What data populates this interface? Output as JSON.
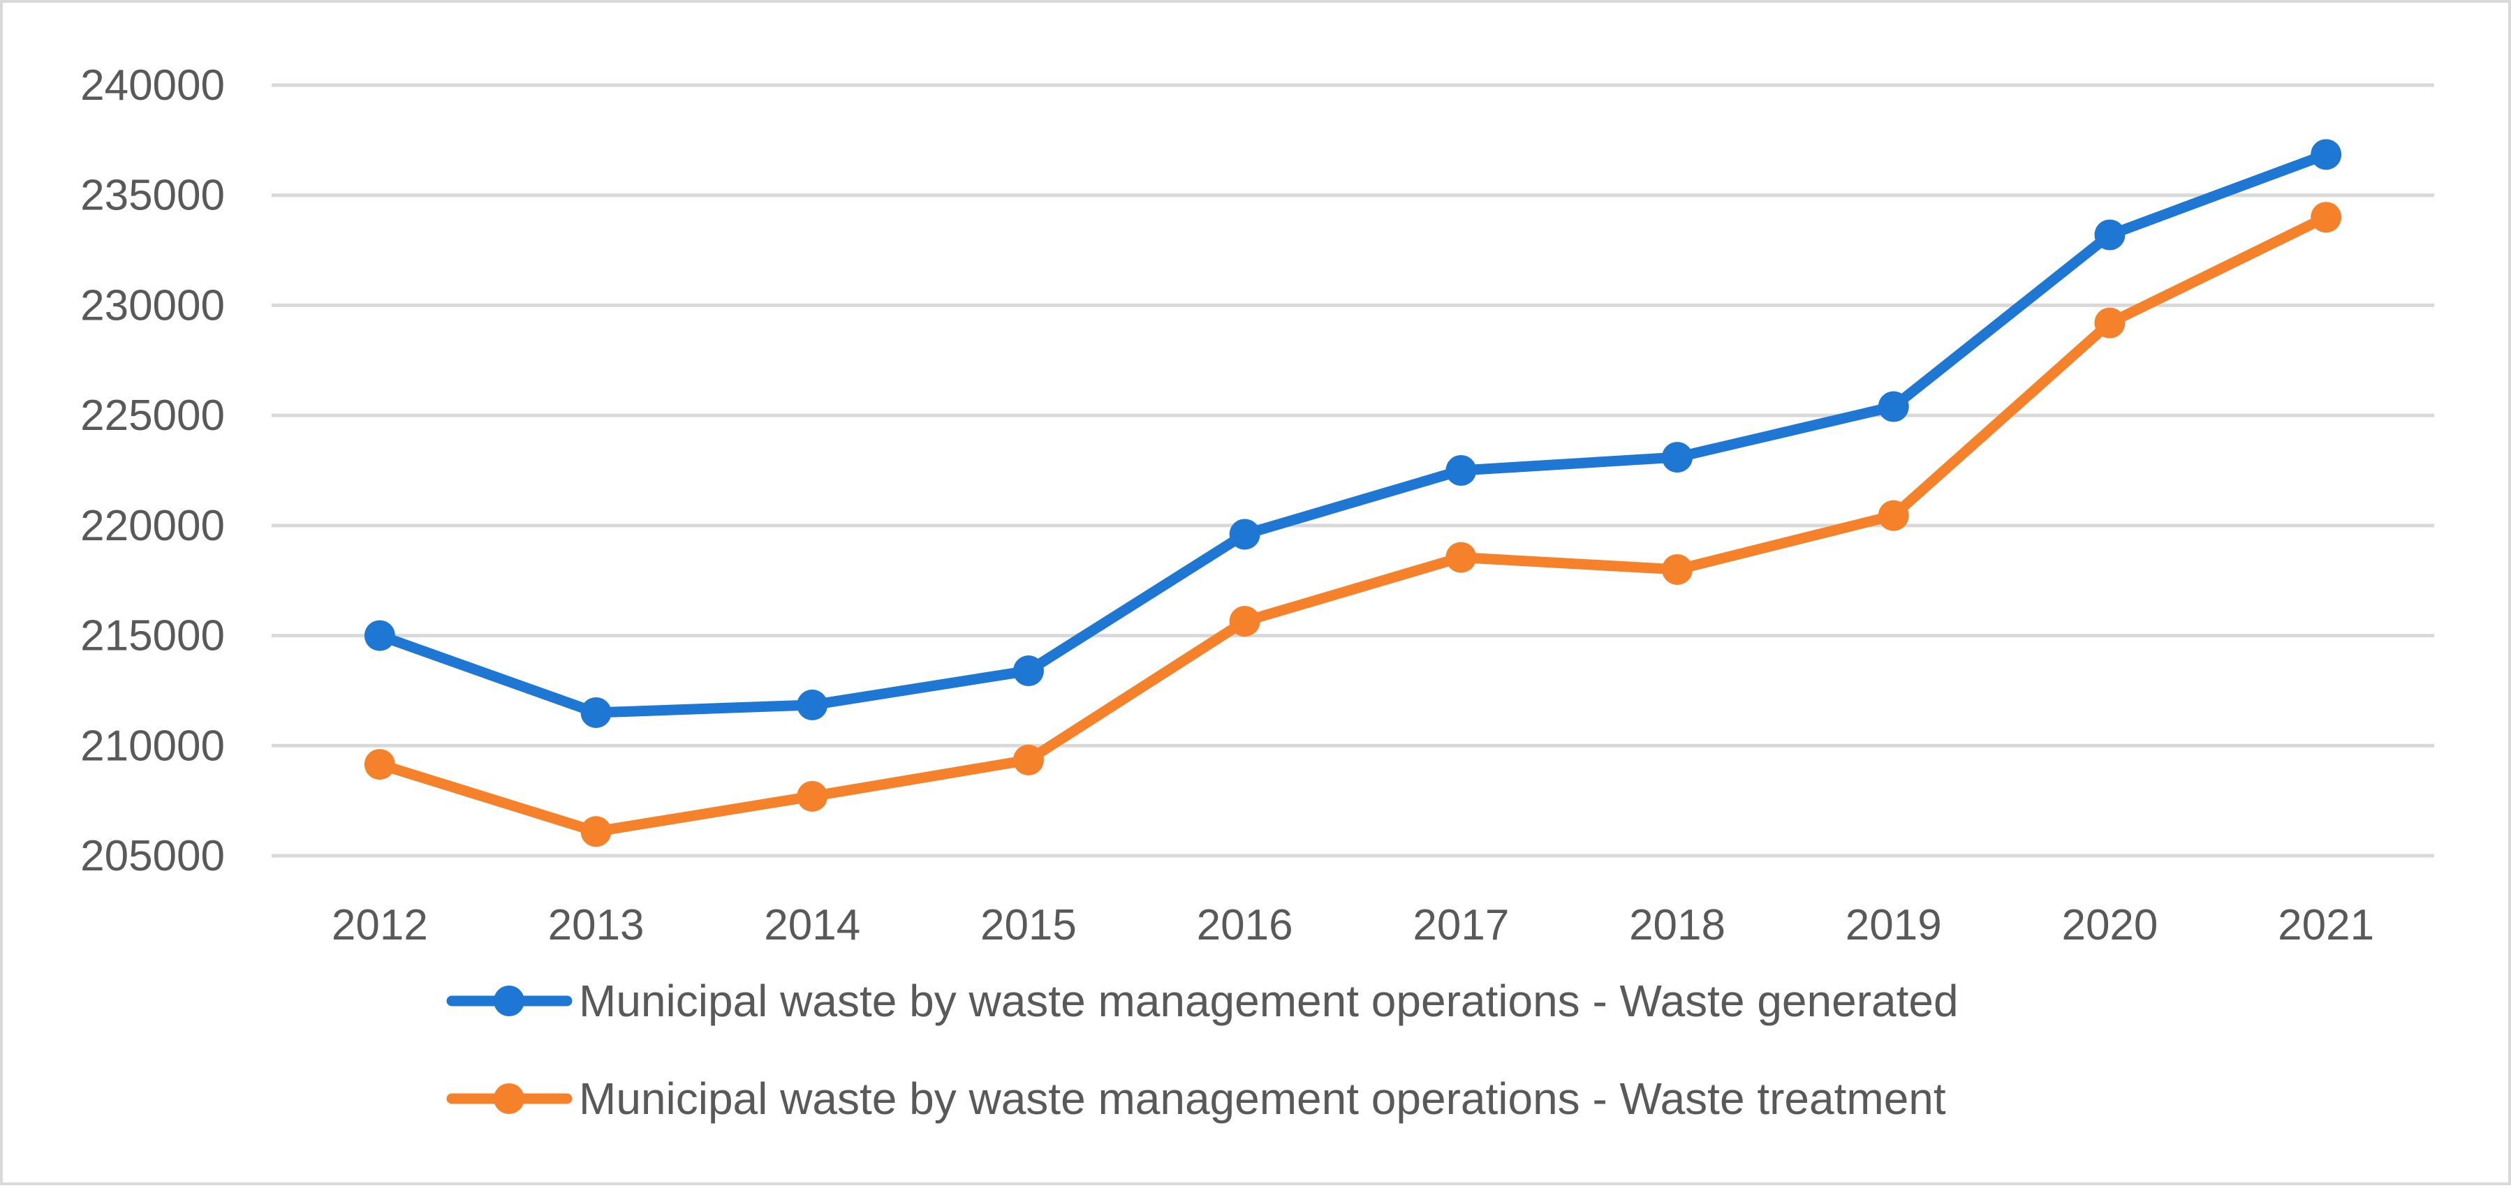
{
  "chart_data": {
    "type": "line",
    "title": "",
    "xlabel": "",
    "ylabel": "",
    "categories": [
      "2012",
      "2013",
      "2014",
      "2015",
      "2016",
      "2017",
      "2018",
      "2019",
      "2020",
      "2021"
    ],
    "series": [
      {
        "name": "Municipal waste by waste management operations - Waste generated",
        "color": "#1f77d4",
        "values": [
          215000,
          211500,
          211850,
          213400,
          219600,
          222500,
          223100,
          225400,
          233200,
          236850
        ]
      },
      {
        "name": "Municipal waste by waste management operations - Waste treatment",
        "color": "#f5822a",
        "values": [
          209150,
          206100,
          207700,
          209350,
          215650,
          218550,
          218000,
          220450,
          229200,
          234000
        ]
      }
    ],
    "ylim": [
      205000,
      240000
    ],
    "yticks": [
      "205000",
      "210000",
      "215000",
      "220000",
      "225000",
      "230000",
      "235000",
      "240000"
    ],
    "grid": true,
    "legend_position": "bottom"
  }
}
